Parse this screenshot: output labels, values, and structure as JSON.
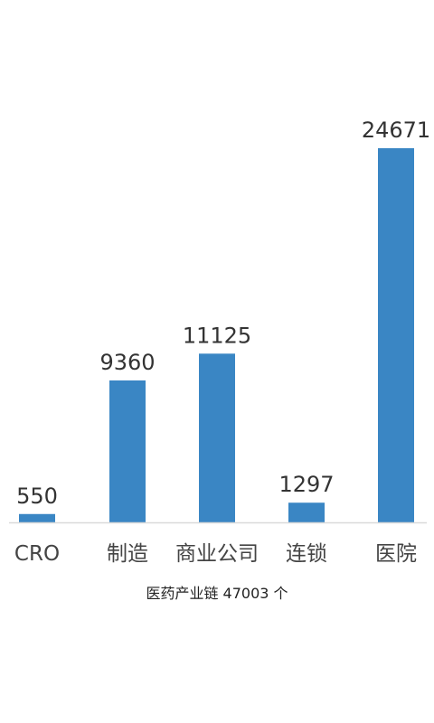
{
  "chart_data": {
    "type": "bar",
    "categories": [
      "CRO",
      "制造",
      "商业公司",
      "连锁",
      "医院"
    ],
    "values": [
      550,
      9360,
      11125,
      1297,
      24671
    ],
    "title": "",
    "xlabel": "",
    "ylabel": "",
    "ylim": [
      0,
      24671
    ],
    "grid": false,
    "legend": "none",
    "bar_color": "#3a86c4",
    "caption": "医药产业链 47003 个"
  }
}
